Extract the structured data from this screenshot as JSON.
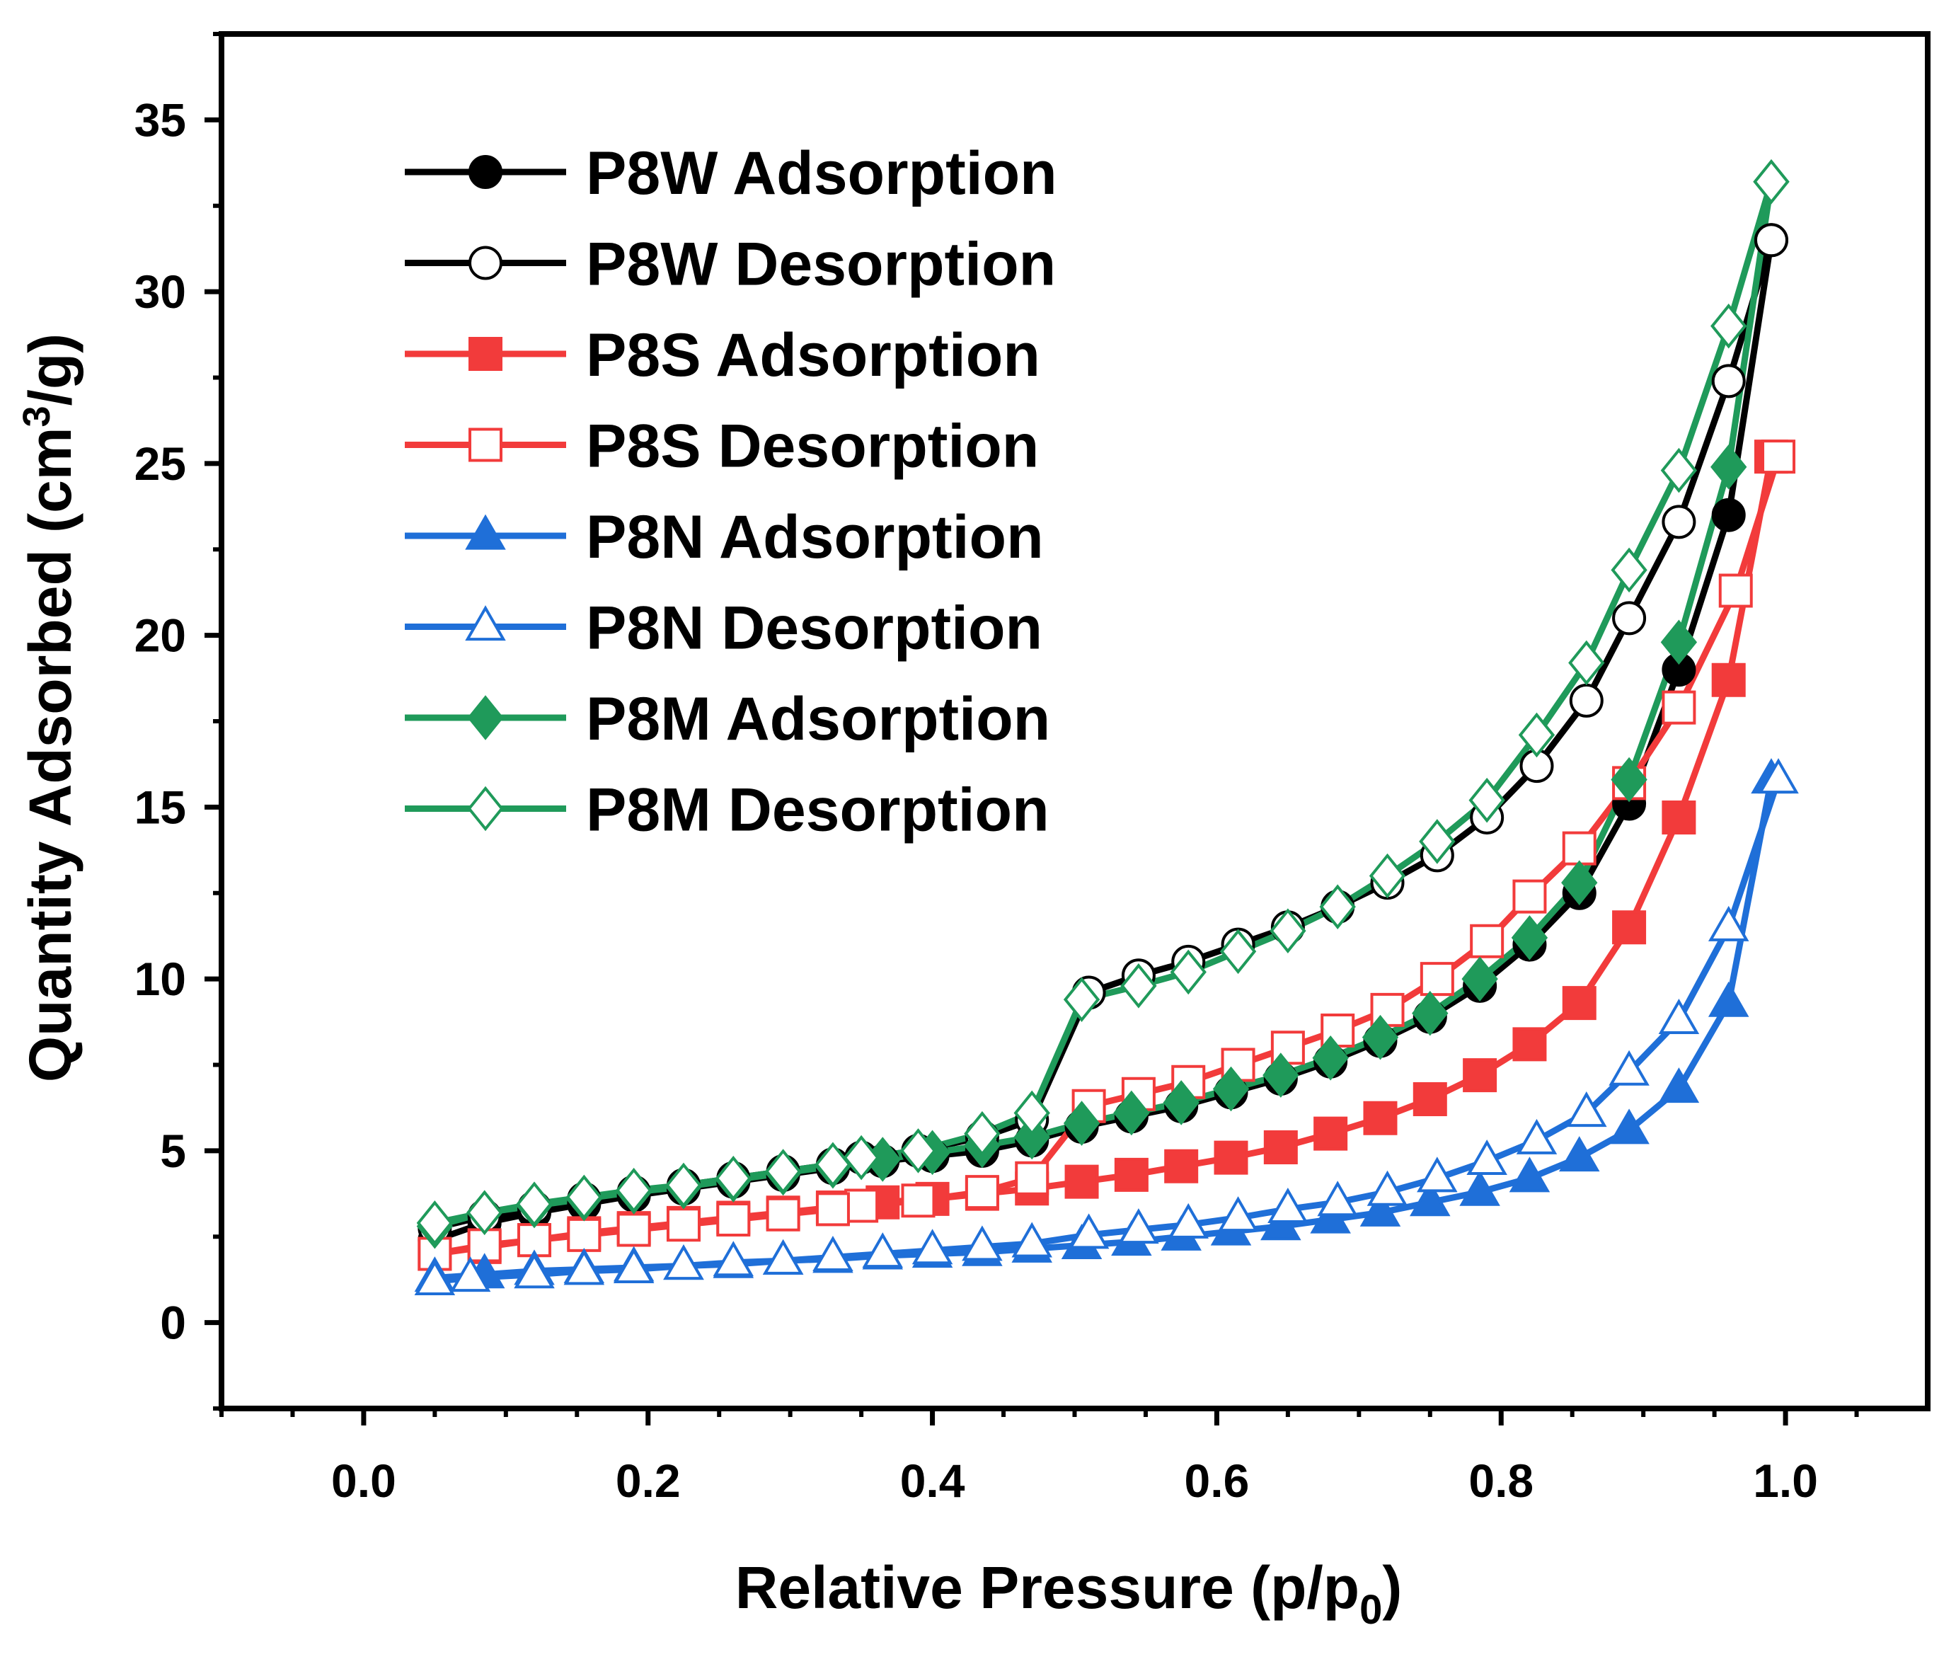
{
  "chart_data": {
    "type": "line",
    "title": "",
    "xlabel": "Relative Pressure (p/p",
    "xlabel_sub": "0",
    "xlabel_close": ")",
    "ylabel": "Quantity Adsorbed (cm",
    "ylabel_sup": "3",
    "ylabel_rest": "/g)",
    "xlim": [
      -0.1,
      1.1
    ],
    "ylim": [
      -2.5,
      37.5
    ],
    "xticks": [
      0.0,
      0.2,
      0.4,
      0.6,
      0.8,
      1.0
    ],
    "xtick_labels": [
      "0.0",
      "0.2",
      "0.4",
      "0.6",
      "0.8",
      "1.0"
    ],
    "yticks": [
      0,
      5,
      10,
      15,
      20,
      25,
      30,
      35
    ],
    "ytick_labels": [
      "0",
      "5",
      "10",
      "15",
      "20",
      "25",
      "30",
      "35"
    ],
    "grid": false,
    "legend_position": "top-left",
    "series": [
      {
        "name": "P8W Adsorption",
        "color": "#000000",
        "marker": "circle",
        "filled": true,
        "x": [
          0.05,
          0.085,
          0.12,
          0.155,
          0.19,
          0.225,
          0.26,
          0.295,
          0.33,
          0.365,
          0.4,
          0.435,
          0.47,
          0.505,
          0.54,
          0.575,
          0.61,
          0.645,
          0.68,
          0.715,
          0.75,
          0.785,
          0.82,
          0.855,
          0.89,
          0.925,
          0.96,
          0.99
        ],
        "y": [
          2.4,
          2.9,
          3.2,
          3.45,
          3.7,
          3.9,
          4.1,
          4.3,
          4.5,
          4.7,
          4.85,
          5.0,
          5.3,
          5.7,
          6.0,
          6.3,
          6.7,
          7.1,
          7.6,
          8.2,
          8.9,
          9.8,
          11.0,
          12.5,
          15.1,
          19.0,
          23.5,
          31.5
        ]
      },
      {
        "name": "P8W Desorption",
        "color": "#000000",
        "marker": "circle",
        "filled": false,
        "x": [
          0.99,
          0.96,
          0.925,
          0.89,
          0.86,
          0.825,
          0.79,
          0.755,
          0.72,
          0.685,
          0.65,
          0.615,
          0.58,
          0.545,
          0.51,
          0.47,
          0.435,
          0.39,
          0.35,
          0.33,
          0.295,
          0.26,
          0.225,
          0.19,
          0.155,
          0.12,
          0.085,
          0.05
        ],
        "y": [
          31.5,
          27.4,
          23.3,
          20.5,
          18.1,
          16.2,
          14.7,
          13.6,
          12.8,
          12.1,
          11.5,
          11.0,
          10.5,
          10.1,
          9.6,
          5.9,
          5.4,
          5.0,
          4.8,
          4.6,
          4.4,
          4.2,
          4.0,
          3.8,
          3.6,
          3.35,
          3.1,
          2.75
        ]
      },
      {
        "name": "P8S Adsorption",
        "color": "#f23b3b",
        "marker": "square",
        "filled": true,
        "x": [
          0.05,
          0.085,
          0.12,
          0.155,
          0.19,
          0.225,
          0.26,
          0.295,
          0.33,
          0.365,
          0.4,
          0.435,
          0.47,
          0.505,
          0.54,
          0.575,
          0.61,
          0.645,
          0.68,
          0.715,
          0.75,
          0.785,
          0.82,
          0.855,
          0.89,
          0.925,
          0.96,
          0.99
        ],
        "y": [
          2.0,
          2.2,
          2.4,
          2.6,
          2.75,
          2.9,
          3.05,
          3.2,
          3.35,
          3.5,
          3.6,
          3.75,
          3.9,
          4.1,
          4.3,
          4.55,
          4.8,
          5.1,
          5.5,
          5.95,
          6.5,
          7.2,
          8.1,
          9.3,
          11.5,
          14.7,
          18.7,
          25.2
        ]
      },
      {
        "name": "P8S Desorption",
        "color": "#f23b3b",
        "marker": "square",
        "filled": false,
        "x": [
          0.995,
          0.965,
          0.925,
          0.89,
          0.855,
          0.82,
          0.79,
          0.755,
          0.72,
          0.685,
          0.65,
          0.615,
          0.58,
          0.545,
          0.51,
          0.47,
          0.435,
          0.39,
          0.35,
          0.33,
          0.295,
          0.26,
          0.225,
          0.19,
          0.155,
          0.12,
          0.085,
          0.05
        ],
        "y": [
          25.2,
          21.3,
          17.9,
          15.7,
          13.8,
          12.4,
          11.1,
          10.0,
          9.1,
          8.5,
          8.0,
          7.5,
          7.0,
          6.65,
          6.3,
          4.2,
          3.8,
          3.55,
          3.4,
          3.3,
          3.15,
          3.0,
          2.85,
          2.7,
          2.55,
          2.4,
          2.25,
          2.0
        ]
      },
      {
        "name": "P8N Adsorption",
        "color": "#1f6fd8",
        "marker": "triangle",
        "filled": true,
        "x": [
          0.05,
          0.085,
          0.12,
          0.155,
          0.19,
          0.225,
          0.26,
          0.295,
          0.33,
          0.365,
          0.4,
          0.435,
          0.47,
          0.505,
          0.54,
          0.575,
          0.61,
          0.645,
          0.68,
          0.715,
          0.75,
          0.785,
          0.82,
          0.855,
          0.89,
          0.925,
          0.96,
          0.99
        ],
        "y": [
          1.3,
          1.4,
          1.5,
          1.55,
          1.6,
          1.65,
          1.7,
          1.8,
          1.85,
          1.95,
          2.0,
          2.05,
          2.15,
          2.25,
          2.35,
          2.5,
          2.65,
          2.8,
          3.0,
          3.2,
          3.5,
          3.8,
          4.2,
          4.8,
          5.6,
          6.8,
          9.3,
          15.8
        ]
      },
      {
        "name": "P8N Desorption",
        "color": "#1f6fd8",
        "marker": "triangle",
        "filled": false,
        "x": [
          0.995,
          0.96,
          0.925,
          0.89,
          0.86,
          0.825,
          0.79,
          0.755,
          0.72,
          0.685,
          0.65,
          0.615,
          0.58,
          0.545,
          0.51,
          0.47,
          0.435,
          0.4,
          0.365,
          0.33,
          0.295,
          0.26,
          0.225,
          0.19,
          0.155,
          0.12,
          0.075,
          0.05
        ],
        "y": [
          15.8,
          11.5,
          8.8,
          7.3,
          6.1,
          5.3,
          4.7,
          4.2,
          3.8,
          3.5,
          3.3,
          3.05,
          2.85,
          2.7,
          2.55,
          2.3,
          2.2,
          2.1,
          2.0,
          1.9,
          1.8,
          1.75,
          1.65,
          1.55,
          1.5,
          1.4,
          1.3,
          1.2
        ]
      },
      {
        "name": "P8M Adsorption",
        "color": "#1f9a5a",
        "marker": "diamond",
        "filled": true,
        "x": [
          0.05,
          0.085,
          0.12,
          0.155,
          0.19,
          0.225,
          0.26,
          0.295,
          0.33,
          0.365,
          0.4,
          0.435,
          0.47,
          0.505,
          0.54,
          0.575,
          0.61,
          0.645,
          0.68,
          0.715,
          0.75,
          0.785,
          0.82,
          0.855,
          0.89,
          0.925,
          0.96,
          0.99
        ],
        "y": [
          2.8,
          3.2,
          3.4,
          3.6,
          3.8,
          3.95,
          4.15,
          4.35,
          4.55,
          4.75,
          4.95,
          5.15,
          5.4,
          5.8,
          6.1,
          6.4,
          6.8,
          7.2,
          7.7,
          8.3,
          9.0,
          10.0,
          11.2,
          12.8,
          15.8,
          19.8,
          24.9,
          33.2
        ]
      },
      {
        "name": "P8M Desorption",
        "color": "#1f9a5a",
        "marker": "diamond",
        "filled": false,
        "x": [
          0.99,
          0.96,
          0.925,
          0.89,
          0.86,
          0.825,
          0.79,
          0.755,
          0.72,
          0.685,
          0.65,
          0.615,
          0.58,
          0.545,
          0.505,
          0.47,
          0.435,
          0.39,
          0.35,
          0.33,
          0.295,
          0.26,
          0.225,
          0.19,
          0.155,
          0.12,
          0.085,
          0.05
        ],
        "y": [
          33.2,
          29.0,
          24.8,
          21.9,
          19.2,
          17.1,
          15.2,
          14.0,
          13.0,
          12.1,
          11.4,
          10.8,
          10.2,
          9.8,
          9.4,
          6.1,
          5.5,
          5.0,
          4.8,
          4.6,
          4.4,
          4.2,
          4.0,
          3.85,
          3.65,
          3.45,
          3.2,
          2.9
        ]
      }
    ]
  }
}
